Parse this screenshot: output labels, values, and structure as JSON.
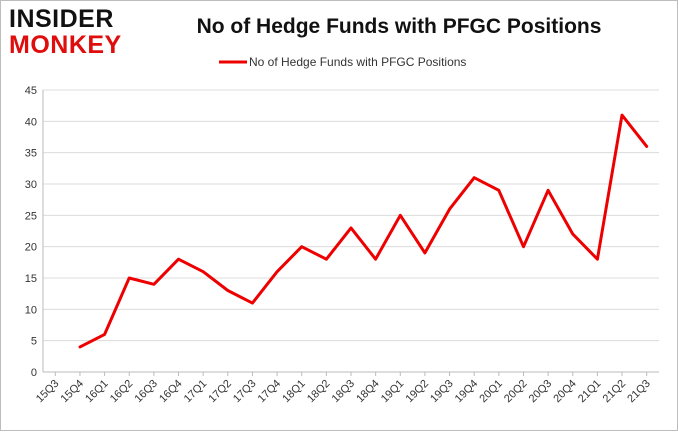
{
  "logo": {
    "line1": "INSIDER",
    "line2": "MONKEY"
  },
  "chart_data": {
    "type": "line",
    "title": "No of Hedge Funds with PFGC Positions",
    "xlabel": "",
    "ylabel": "",
    "categories": [
      "15Q3",
      "15Q4",
      "16Q1",
      "16Q2",
      "16Q3",
      "16Q4",
      "17Q1",
      "17Q2",
      "17Q3",
      "17Q4",
      "18Q1",
      "18Q2",
      "18Q3",
      "18Q4",
      "19Q1",
      "19Q2",
      "19Q3",
      "19Q4",
      "20Q1",
      "20Q2",
      "20Q3",
      "20Q4",
      "21Q1",
      "21Q2",
      "21Q3"
    ],
    "series": [
      {
        "name": "No of Hedge Funds with PFGC Positions",
        "color": "#ee0000",
        "values": [
          null,
          4,
          6,
          15,
          14,
          18,
          16,
          13,
          11,
          16,
          20,
          18,
          23,
          18,
          25,
          19,
          26,
          31,
          29,
          20,
          29,
          22,
          18,
          41,
          36
        ]
      }
    ],
    "ylim": [
      0,
      45
    ],
    "yticks": [
      0,
      5,
      10,
      15,
      20,
      25,
      30,
      35,
      40,
      45
    ],
    "grid": true,
    "legend": "top-center"
  }
}
